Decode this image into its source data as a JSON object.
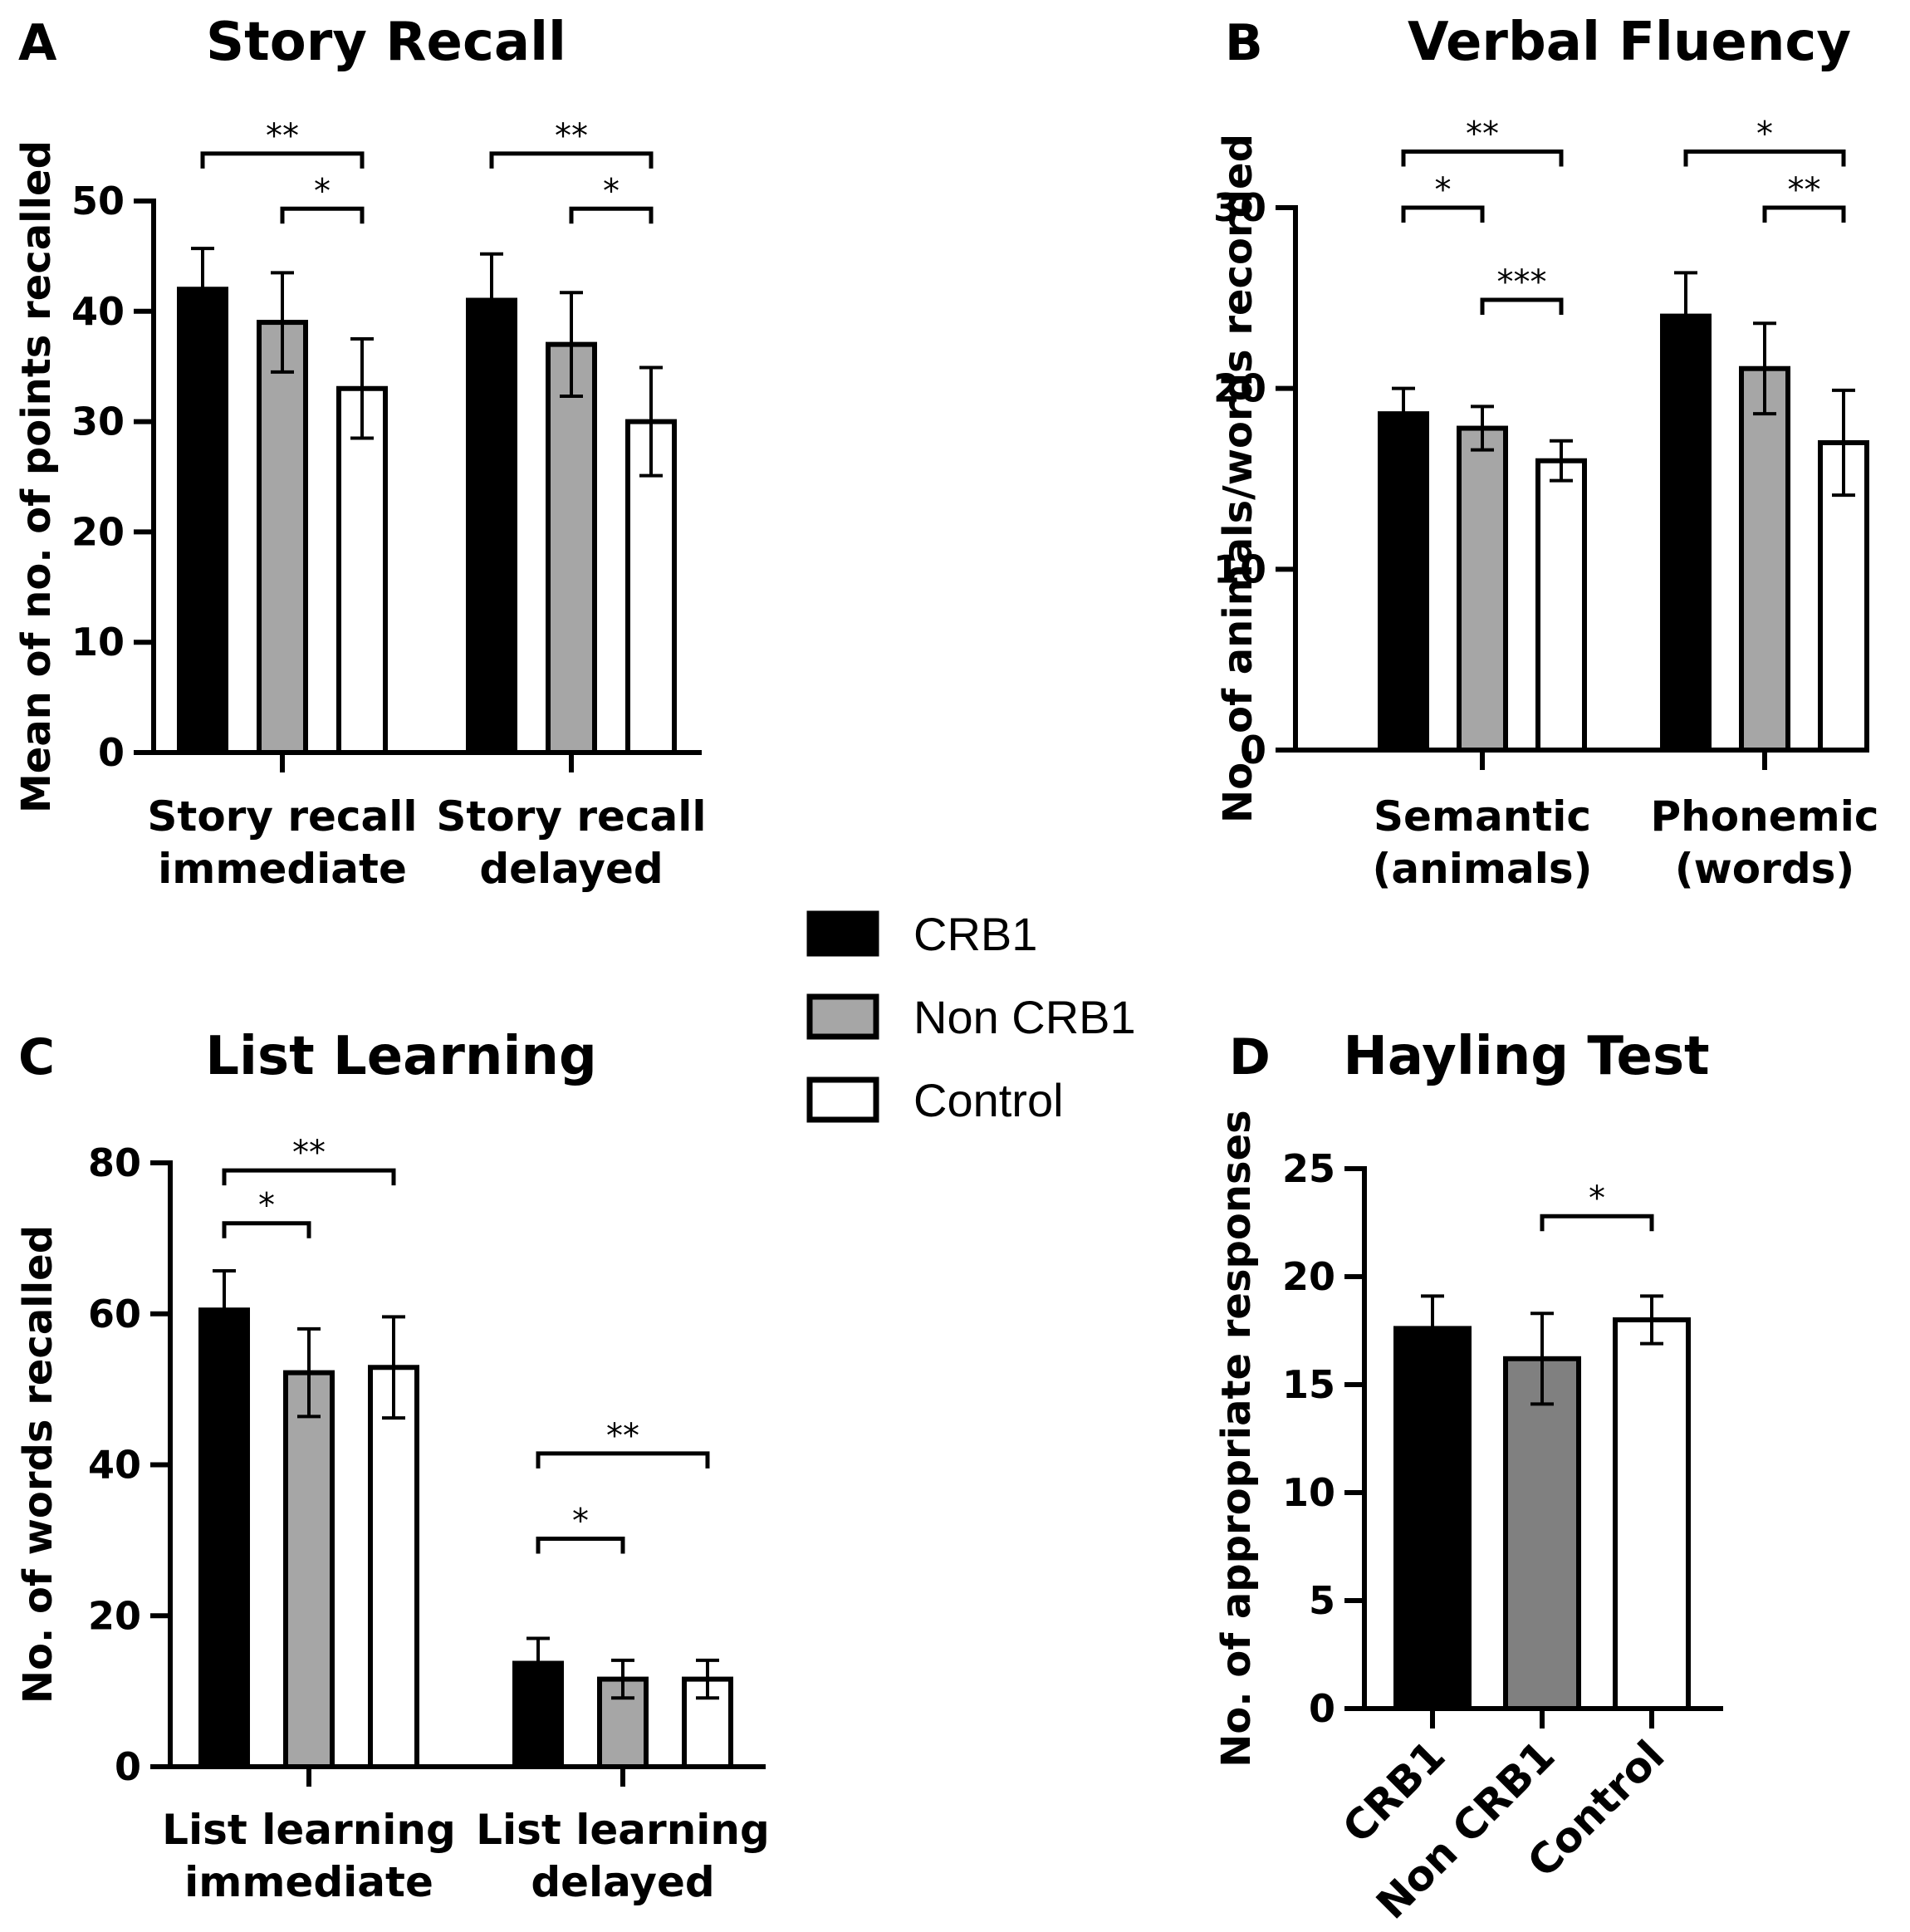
{
  "legend": [
    {
      "name": "CRB1",
      "color": "#000000"
    },
    {
      "name": "Non CRB1",
      "color": "#a6a6a6"
    },
    {
      "name": "Control",
      "color": "#ffffff"
    }
  ],
  "chart_data": [
    {
      "panel": "A",
      "type": "bar",
      "title": "Story Recall",
      "ylabel": "Mean of no. of points recalled",
      "ylim": [
        0,
        50
      ],
      "yticks": [
        0,
        10,
        20,
        30,
        40,
        50
      ],
      "categories": [
        [
          "Story recall",
          "immediate"
        ],
        [
          "Story recall",
          "delayed"
        ]
      ],
      "series": [
        {
          "name": "CRB1",
          "values": [
            42,
            41
          ],
          "errors": [
            3.7,
            4.2
          ]
        },
        {
          "name": "Non CRB1",
          "values": [
            39,
            37
          ],
          "errors": [
            4.5,
            4.7
          ]
        },
        {
          "name": "Control",
          "values": [
            33,
            30
          ],
          "errors": [
            4.5,
            4.9
          ]
        }
      ],
      "significance": [
        {
          "category": 0,
          "from": 0,
          "to": 2,
          "y": 54.3,
          "label": "**"
        },
        {
          "category": 0,
          "from": 1,
          "to": 2,
          "y": 49.3,
          "label": "*"
        },
        {
          "category": 1,
          "from": 0,
          "to": 2,
          "y": 54.3,
          "label": "**"
        },
        {
          "category": 1,
          "from": 1,
          "to": 2,
          "y": 49.3,
          "label": "*"
        }
      ]
    },
    {
      "panel": "B",
      "type": "bar",
      "title": "Verbal Fluency",
      "ylabel": "No. of animals/words recorded",
      "ylim": [
        0,
        30
      ],
      "yticks": [
        0,
        10,
        20,
        30
      ],
      "categories": [
        [
          "Semantic",
          "(animals)"
        ],
        [
          "Phonemic",
          "(words)"
        ]
      ],
      "series": [
        {
          "name": "CRB1",
          "values": [
            18.6,
            24
          ],
          "errors": [
            1.4,
            2.4
          ]
        },
        {
          "name": "Non CRB1",
          "values": [
            17.8,
            21.1
          ],
          "errors": [
            1.2,
            2.5
          ]
        },
        {
          "name": "Control",
          "values": [
            16,
            17
          ],
          "errors": [
            1.1,
            2.9
          ]
        }
      ],
      "significance": [
        {
          "category": 0,
          "from": 0,
          "to": 2,
          "y": 33.1,
          "label": "**"
        },
        {
          "category": 0,
          "from": 0,
          "to": 1,
          "y": 30.0,
          "label": "*"
        },
        {
          "category": 0,
          "from": 1,
          "to": 2,
          "y": 24.9,
          "label": "***"
        },
        {
          "category": 1,
          "from": 0,
          "to": 2,
          "y": 33.1,
          "label": "*"
        },
        {
          "category": 1,
          "from": 1,
          "to": 2,
          "y": 30.0,
          "label": "**"
        }
      ]
    },
    {
      "panel": "C",
      "type": "bar",
      "title": "List Learning",
      "ylabel": "No. of words recalled",
      "ylim": [
        0,
        80
      ],
      "yticks": [
        0,
        20,
        40,
        60,
        80
      ],
      "categories": [
        [
          "List learning",
          "immediate"
        ],
        [
          "List learning",
          "delayed"
        ]
      ],
      "series": [
        {
          "name": "CRB1",
          "values": [
            60.5,
            13.7
          ],
          "errors": [
            5.2,
            3.3
          ]
        },
        {
          "name": "Non CRB1",
          "values": [
            52.2,
            11.6
          ],
          "errors": [
            5.8,
            2.5
          ]
        },
        {
          "name": "Control",
          "values": [
            52.9,
            11.6
          ],
          "errors": [
            6.7,
            2.5
          ]
        }
      ],
      "significance": [
        {
          "category": 0,
          "from": 0,
          "to": 2,
          "y": 79.0,
          "label": "**"
        },
        {
          "category": 0,
          "from": 0,
          "to": 1,
          "y": 72.0,
          "label": "*"
        },
        {
          "category": 1,
          "from": 0,
          "to": 2,
          "y": 41.5,
          "label": "**"
        },
        {
          "category": 1,
          "from": 0,
          "to": 1,
          "y": 30.2,
          "label": "*"
        }
      ]
    },
    {
      "panel": "D",
      "type": "bar",
      "title": "Hayling Test",
      "ylabel": "No. of appropriate responses",
      "ylim": [
        0,
        25
      ],
      "yticks": [
        0,
        5,
        10,
        15,
        20,
        25
      ],
      "categories": [
        "CRB1",
        "Non CRB1",
        "Control"
      ],
      "values": [
        17.6,
        16.2,
        18
      ],
      "errors": [
        1.5,
        2.1,
        1.1
      ],
      "colors": [
        "#000000",
        "#808080",
        "#ffffff"
      ],
      "significance": [
        {
          "from": 1,
          "to": 2,
          "y": 22.8,
          "label": "*"
        }
      ]
    }
  ]
}
